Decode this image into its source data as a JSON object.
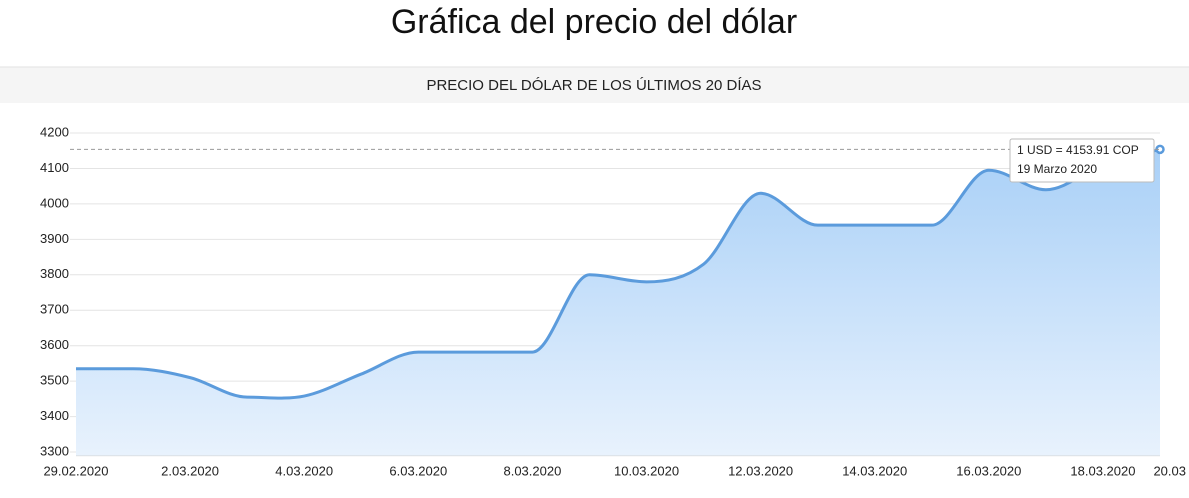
{
  "header": {
    "title": "Gráfica del precio del dólar"
  },
  "chart_data": {
    "type": "area",
    "title": "PRECIO DEL DÓLAR DE LOS ÚLTIMOS 20 DÍAS",
    "categories": [
      "29.02.2020",
      null,
      "2.03.2020",
      null,
      "4.03.2020",
      null,
      "6.03.2020",
      null,
      "8.03.2020",
      null,
      "10.03.2020",
      null,
      "12.03.2020",
      null,
      "14.03.2020",
      null,
      "16.03.2020",
      null,
      "18.03.2020",
      "20.03"
    ],
    "series": [
      {
        "color": "#5b9bdc",
        "values": [
          3535,
          3535,
          3510,
          3455,
          3458,
          3520,
          3582,
          3582,
          3582,
          3800,
          3780,
          3830,
          4030,
          3940,
          3940,
          3940,
          4095,
          4040,
          4110,
          4153.91
        ]
      }
    ],
    "ylim": [
      3290,
      4200
    ],
    "yticks": [
      3300,
      3400,
      3500,
      3600,
      3700,
      3800,
      3900,
      4000,
      4100,
      4200
    ],
    "grid": true,
    "tooltip": {
      "value": 4153.91,
      "line1": "1 USD = 4153.91 COP",
      "line2": "19 Marzo 2020"
    }
  }
}
